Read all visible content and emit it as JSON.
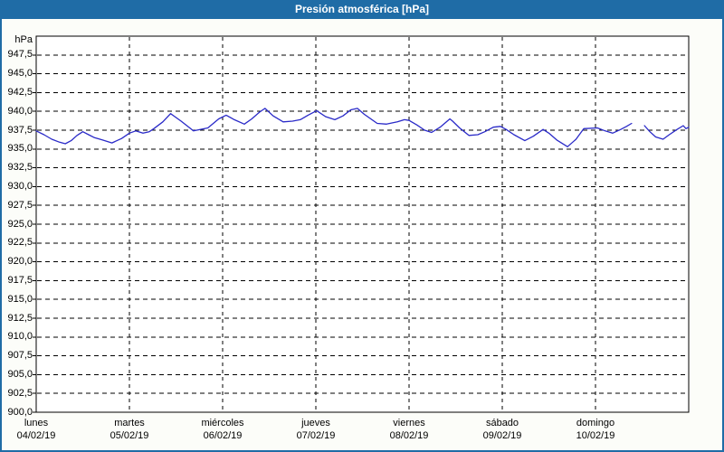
{
  "window": {
    "title": "Presión atmosférica [hPa]"
  },
  "colors": {
    "titlebar_bg": "#1f6ca6",
    "frame_border": "#1f6ca6",
    "page_bg": "#fcfdf9",
    "plot_bg": "#ffffff",
    "plot_border": "#000000",
    "grid": "#000000",
    "line": "#2a2ac8",
    "text": "#000000",
    "title_text": "#ffffff"
  },
  "y_axis": {
    "unit": "hPa",
    "tick_labels": [
      "947,5",
      "945,0",
      "942,5",
      "940,0",
      "937,5",
      "935,0",
      "932,5",
      "930,0",
      "927,5",
      "925,0",
      "922,5",
      "920,0",
      "917,5",
      "915,0",
      "912,5",
      "910,0",
      "907,5",
      "905,0",
      "902,5",
      "900,0"
    ],
    "tick_values": [
      947.5,
      945.0,
      942.5,
      940.0,
      937.5,
      935.0,
      932.5,
      930.0,
      927.5,
      925.0,
      922.5,
      920.0,
      917.5,
      915.0,
      912.5,
      910.0,
      907.5,
      905.0,
      902.5,
      900.0
    ]
  },
  "x_axis": {
    "days": [
      {
        "name": "lunes",
        "date": "04/02/19"
      },
      {
        "name": "martes",
        "date": "05/02/19"
      },
      {
        "name": "miércoles",
        "date": "06/02/19"
      },
      {
        "name": "jueves",
        "date": "07/02/19"
      },
      {
        "name": "viernes",
        "date": "08/02/19"
      },
      {
        "name": "sábado",
        "date": "09/02/19"
      },
      {
        "name": "domingo",
        "date": "10/02/19"
      }
    ]
  },
  "chart_data": {
    "type": "line",
    "title": "Presión atmosférica [hPa]",
    "ylabel": "hPa",
    "ylim": [
      900,
      950
    ],
    "ytick_step": 2.5,
    "x_range_hours": [
      0,
      168
    ],
    "x_categories": [
      "lunes 04/02/19",
      "martes 05/02/19",
      "miércoles 06/02/19",
      "jueves 07/02/19",
      "viernes 08/02/19",
      "sábado 09/02/19",
      "domingo 10/02/19"
    ],
    "grid": true,
    "legend_position": "none",
    "series": [
      {
        "name": "Presión atmosférica",
        "units": "hPa",
        "x_units": "hours since lunes 04/02/19 00:00 (null = data gap)",
        "points": [
          [
            0,
            937.4
          ],
          [
            2,
            936.9
          ],
          [
            4,
            936.3
          ],
          [
            6,
            935.9
          ],
          [
            7.5,
            935.7
          ],
          [
            9,
            936.1
          ],
          [
            10.5,
            936.8
          ],
          [
            12,
            937.3
          ],
          [
            13.5,
            936.9
          ],
          [
            15,
            936.5
          ],
          [
            17,
            936.2
          ],
          [
            19.5,
            935.8
          ],
          [
            22,
            936.4
          ],
          [
            24,
            937.1
          ],
          [
            25.6,
            937.4
          ],
          [
            27.5,
            937.1
          ],
          [
            29.1,
            937.3
          ],
          [
            30.3,
            937.7
          ],
          [
            32.6,
            938.6
          ],
          [
            34.6,
            939.7
          ],
          [
            36.5,
            939.0
          ],
          [
            37.3,
            938.7
          ],
          [
            40.5,
            937.4
          ],
          [
            44.2,
            937.8
          ],
          [
            47,
            939.0
          ],
          [
            48.9,
            939.5
          ],
          [
            51,
            938.9
          ],
          [
            53.6,
            938.3
          ],
          [
            55.5,
            939.0
          ],
          [
            57.5,
            939.9
          ],
          [
            58.9,
            940.4
          ],
          [
            61,
            939.4
          ],
          [
            63.6,
            938.6
          ],
          [
            66,
            938.7
          ],
          [
            68,
            938.9
          ],
          [
            70,
            939.5
          ],
          [
            72.2,
            940.1
          ],
          [
            74.5,
            939.3
          ],
          [
            76.9,
            938.9
          ],
          [
            79,
            939.4
          ],
          [
            81,
            940.2
          ],
          [
            82.7,
            940.4
          ],
          [
            84.5,
            939.6
          ],
          [
            87.8,
            938.4
          ],
          [
            90.2,
            938.3
          ],
          [
            93,
            938.6
          ],
          [
            94.8,
            938.9
          ],
          [
            96,
            938.8
          ],
          [
            98,
            938.2
          ],
          [
            100,
            937.5
          ],
          [
            101.8,
            937.2
          ],
          [
            104,
            937.9
          ],
          [
            106.5,
            939.0
          ],
          [
            107.2,
            938.7
          ],
          [
            109,
            937.8
          ],
          [
            111.4,
            936.8
          ],
          [
            113.7,
            936.9
          ],
          [
            115.5,
            937.3
          ],
          [
            117.7,
            937.9
          ],
          [
            119.5,
            938.0
          ],
          [
            121,
            937.6
          ],
          [
            123,
            936.9
          ],
          [
            125.8,
            936.1
          ],
          [
            128,
            936.7
          ],
          [
            130.5,
            937.6
          ],
          [
            132,
            937.1
          ],
          [
            134,
            936.2
          ],
          [
            136.8,
            935.3
          ],
          [
            139,
            936.3
          ],
          [
            141,
            937.7
          ],
          [
            144.5,
            937.8
          ],
          [
            146.5,
            937.4
          ],
          [
            148.4,
            937.1
          ],
          [
            150.5,
            937.6
          ],
          [
            152,
            938.0
          ],
          [
            153.3,
            938.4
          ],
          null,
          [
            156.6,
            938.1
          ],
          [
            158,
            937.3
          ],
          [
            159.5,
            936.6
          ],
          [
            161.4,
            936.3
          ],
          [
            163,
            936.9
          ],
          [
            165,
            937.6
          ],
          [
            166.6,
            938.1
          ],
          [
            167.3,
            937.7
          ],
          [
            168,
            937.9
          ]
        ]
      }
    ]
  }
}
